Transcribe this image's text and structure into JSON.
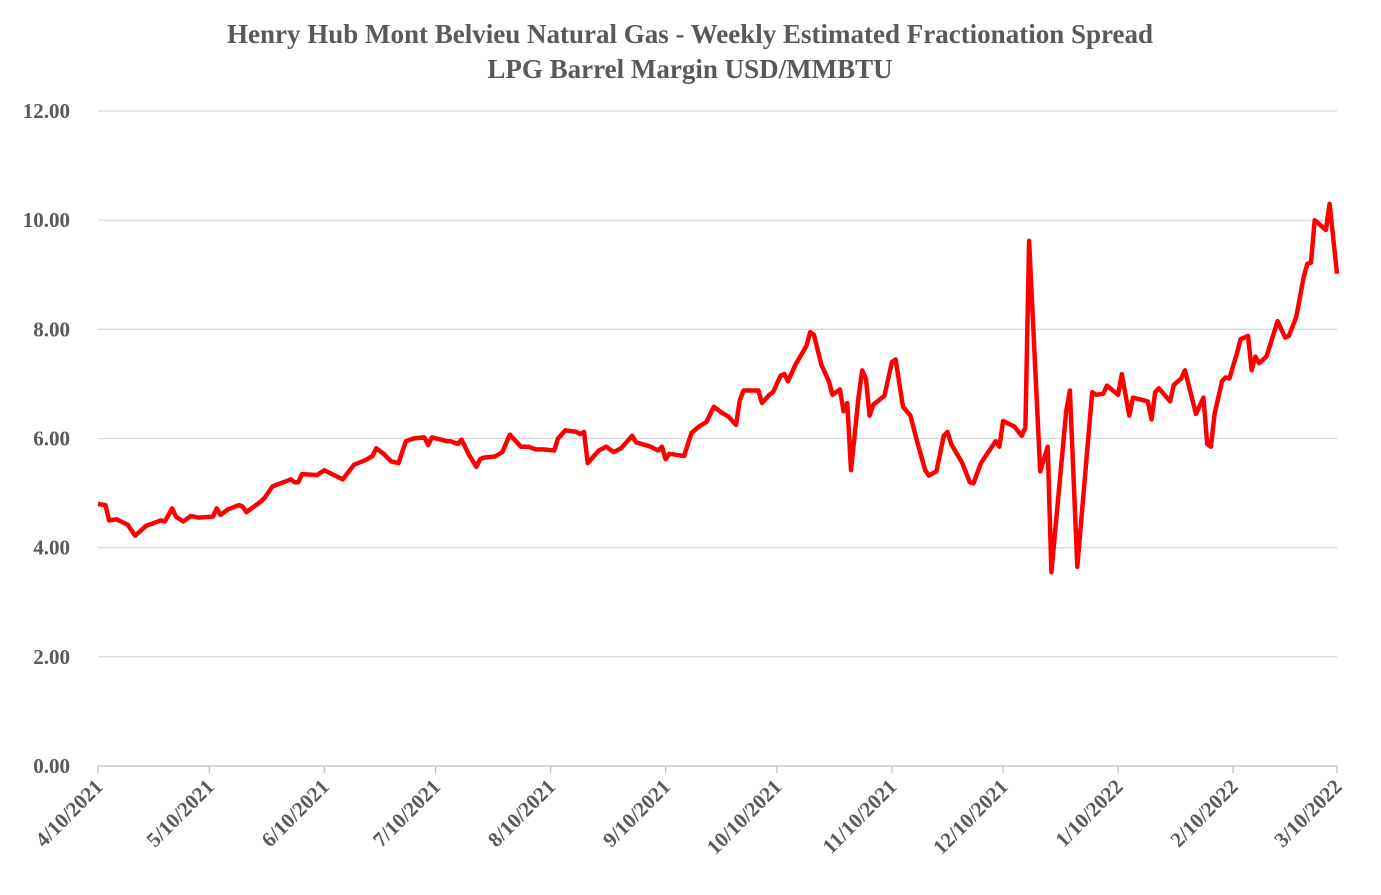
{
  "chart_data": {
    "type": "line",
    "title": "Henry Hub Mont Belvieu Natural Gas - Weekly Estimated Fractionation Spread",
    "subtitle": "LPG Barrel Margin USD/MMBTU",
    "color": "#ff0000",
    "grid": true,
    "ylim": [
      0,
      12
    ],
    "yticks": [
      {
        "value": 0,
        "label": "0.00"
      },
      {
        "value": 2,
        "label": "2.00"
      },
      {
        "value": 4,
        "label": "4.00"
      },
      {
        "value": 6,
        "label": "6.00"
      },
      {
        "value": 8,
        "label": "8.00"
      },
      {
        "value": 10,
        "label": "10.00"
      },
      {
        "value": 12,
        "label": "12.00"
      }
    ],
    "xlim": [
      "4/10/2021",
      "3/10/2022"
    ],
    "xticks": [
      "4/10/2021",
      "5/10/2021",
      "6/10/2021",
      "7/10/2021",
      "8/10/2021",
      "9/10/2021",
      "10/10/2021",
      "11/10/2021",
      "12/10/2021",
      "1/10/2022",
      "2/10/2022",
      "3/10/2022"
    ],
    "x": [
      "4/10/2021",
      "4/12/2021",
      "4/13/2021",
      "4/15/2021",
      "4/18/2021",
      "4/20/2021",
      "4/23/2021",
      "4/27/2021",
      "4/28/2021",
      "4/30/2021",
      "5/1/2021",
      "5/3/2021",
      "5/5/2021",
      "5/7/2021",
      "5/11/2021",
      "5/12/2021",
      "5/13/2021",
      "5/15/2021",
      "5/18/2021",
      "5/19/2021",
      "5/20/2021",
      "5/22/2021",
      "5/24/2021",
      "5/25/2021",
      "5/27/2021",
      "5/30/2021",
      "6/1/2021",
      "6/2/2021",
      "6/3/2021",
      "6/4/2021",
      "6/8/2021",
      "6/10/2021",
      "6/12/2021",
      "6/15/2021",
      "6/18/2021",
      "6/21/2021",
      "6/23/2021",
      "6/24/2021",
      "6/26/2021",
      "6/28/2021",
      "6/30/2021",
      "7/2/2021",
      "7/4/2021",
      "7/7/2021",
      "7/8/2021",
      "7/9/2021",
      "7/12/2021",
      "7/13/2021",
      "7/14/2021",
      "7/16/2021",
      "7/17/2021",
      "7/19/2021",
      "7/21/2021",
      "7/22/2021",
      "7/23/2021",
      "7/26/2021",
      "7/28/2021",
      "7/30/2021",
      "8/2/2021",
      "8/4/2021",
      "8/6/2021",
      "8/8/2021",
      "8/11/2021",
      "8/12/2021",
      "8/14/2021",
      "8/17/2021",
      "8/18/2021",
      "8/19/2021",
      "8/20/2021",
      "8/23/2021",
      "8/25/2021",
      "8/27/2021",
      "8/29/2021",
      "9/1/2021",
      "9/2/2021",
      "9/6/2021",
      "9/8/2021",
      "9/9/2021",
      "9/10/2021",
      "9/11/2021",
      "9/15/2021",
      "9/17/2021",
      "9/19/2021",
      "9/21/2021",
      "9/23/2021",
      "9/25/2021",
      "9/27/2021",
      "9/29/2021",
      "9/30/2021",
      "10/1/2021",
      "10/5/2021",
      "10/6/2021",
      "10/8/2021",
      "10/9/2021",
      "10/11/2021",
      "10/12/2021",
      "10/13/2021",
      "10/15/2021",
      "10/18/2021",
      "10/19/2021",
      "10/20/2021",
      "10/22/2021",
      "10/24/2021",
      "10/25/2021",
      "10/27/2021",
      "10/28/2021",
      "10/29/2021",
      "10/30/2021",
      "11/1/2021",
      "11/2/2021",
      "11/3/2021",
      "11/4/2021",
      "11/5/2021",
      "11/8/2021",
      "11/10/2021",
      "11/11/2021",
      "11/13/2021",
      "11/15/2021",
      "11/17/2021",
      "11/19/2021",
      "11/20/2021",
      "11/22/2021",
      "11/24/2021",
      "11/25/2021",
      "11/26/2021",
      "11/29/2021",
      "12/1/2021",
      "12/2/2021",
      "12/4/2021",
      "12/6/2021",
      "12/8/2021",
      "12/9/2021",
      "12/10/2021",
      "12/13/2021",
      "12/15/2021",
      "12/16/2021",
      "12/17/2021",
      "12/20/2021",
      "12/22/2021",
      "12/23/2021",
      "12/27/2021",
      "12/28/2021",
      "12/30/2021",
      "1/3/2022",
      "1/4/2022",
      "1/6/2022",
      "1/7/2022",
      "1/10/2022",
      "1/11/2022",
      "1/13/2022",
      "1/14/2022",
      "1/18/2022",
      "1/19/2022",
      "1/20/2022",
      "1/21/2022",
      "1/24/2022",
      "1/25/2022",
      "1/27/2022",
      "1/28/2022",
      "1/31/2022",
      "2/2/2022",
      "2/3/2022",
      "2/4/2022",
      "2/5/2022",
      "2/7/2022",
      "2/8/2022",
      "2/9/2022",
      "2/11/2022",
      "2/12/2022",
      "2/14/2022",
      "2/15/2022",
      "2/16/2022",
      "2/17/2022",
      "2/19/2022",
      "2/22/2022",
      "2/24/2022",
      "2/25/2022",
      "2/27/2022",
      "3/1/2022",
      "3/2/2022",
      "3/3/2022",
      "3/4/2022",
      "3/7/2022",
      "3/8/2022",
      "3/10/2022"
    ],
    "values": [
      4.8,
      4.78,
      4.5,
      4.52,
      4.42,
      4.22,
      4.4,
      4.5,
      4.48,
      4.72,
      4.57,
      4.48,
      4.58,
      4.55,
      4.57,
      4.72,
      4.6,
      4.7,
      4.78,
      4.75,
      4.65,
      4.75,
      4.85,
      4.92,
      5.12,
      5.2,
      5.25,
      5.2,
      5.2,
      5.35,
      5.33,
      5.42,
      5.35,
      5.25,
      5.52,
      5.6,
      5.68,
      5.82,
      5.72,
      5.58,
      5.55,
      5.95,
      6.0,
      6.02,
      5.88,
      6.02,
      5.97,
      5.95,
      5.95,
      5.9,
      5.98,
      5.7,
      5.48,
      5.62,
      5.65,
      5.67,
      5.75,
      6.07,
      5.85,
      5.85,
      5.8,
      5.8,
      5.78,
      6.0,
      6.15,
      6.12,
      6.08,
      6.12,
      5.55,
      5.78,
      5.85,
      5.75,
      5.82,
      6.05,
      5.93,
      5.85,
      5.78,
      5.85,
      5.62,
      5.72,
      5.68,
      6.1,
      6.22,
      6.3,
      6.58,
      6.48,
      6.4,
      6.25,
      6.7,
      6.88,
      6.88,
      6.65,
      6.8,
      6.85,
      7.15,
      7.18,
      7.05,
      7.35,
      7.7,
      7.95,
      7.9,
      7.35,
      7.05,
      6.8,
      6.9,
      6.5,
      6.65,
      5.42,
      6.75,
      7.25,
      7.1,
      6.42,
      6.62,
      6.78,
      7.4,
      7.45,
      6.58,
      6.42,
      5.9,
      5.42,
      5.32,
      5.4,
      6.05,
      6.12,
      5.9,
      5.55,
      5.2,
      5.18,
      5.55,
      5.75,
      5.95,
      5.85,
      6.32,
      6.22,
      6.05,
      6.2,
      9.62,
      5.4,
      5.85,
      3.55,
      6.5,
      6.88,
      3.65,
      6.85,
      6.8,
      6.82,
      6.97,
      6.8,
      7.18,
      6.42,
      6.75,
      6.68,
      6.35,
      6.85,
      6.92,
      6.68,
      6.98,
      7.1,
      7.25,
      6.45,
      6.75,
      5.9,
      5.85,
      6.45,
      7.05,
      7.12,
      7.1,
      7.55,
      7.82,
      7.88,
      7.25,
      7.5,
      7.38,
      7.5,
      8.15,
      7.85,
      7.88,
      8.22,
      8.95,
      9.2,
      9.22,
      10.0,
      9.82,
      10.3,
      9.02
    ]
  }
}
